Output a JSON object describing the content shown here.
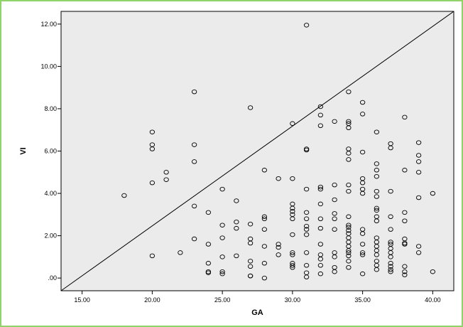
{
  "chart_data": {
    "type": "scatter",
    "xlabel": "GA",
    "ylabel": "VI",
    "xlim": [
      13.5,
      41.5
    ],
    "ylim": [
      -0.6,
      12.6
    ],
    "x_ticks": [
      {
        "value": 15,
        "label": "15.00"
      },
      {
        "value": 20,
        "label": "20.00"
      },
      {
        "value": 25,
        "label": "25.00"
      },
      {
        "value": 30,
        "label": "30.00"
      },
      {
        "value": 35,
        "label": "35.00"
      },
      {
        "value": 40,
        "label": "40.00"
      }
    ],
    "y_ticks": [
      {
        "value": 0,
        "label": ".00"
      },
      {
        "value": 2,
        "label": "2.00"
      },
      {
        "value": 4,
        "label": "4.00"
      },
      {
        "value": 6,
        "label": "6.00"
      },
      {
        "value": 8,
        "label": "8.00"
      },
      {
        "value": 10,
        "label": "10.00"
      },
      {
        "value": 12,
        "label": "12.00"
      }
    ],
    "reference_line": {
      "from": [
        13.5,
        -0.6
      ],
      "to": [
        41.5,
        12.6
      ]
    },
    "plot_background": "#ebebeb",
    "marker_color": "#000000",
    "points": [
      [
        18,
        3.9
      ],
      [
        20,
        6.9
      ],
      [
        20,
        6.3
      ],
      [
        20,
        6.1
      ],
      [
        20,
        4.5
      ],
      [
        20,
        1.05
      ],
      [
        21,
        5.0
      ],
      [
        21,
        4.65
      ],
      [
        22,
        1.2
      ],
      [
        23,
        8.8
      ],
      [
        23,
        6.3
      ],
      [
        23,
        5.5
      ],
      [
        23,
        3.4
      ],
      [
        23,
        1.85
      ],
      [
        24,
        3.1
      ],
      [
        24,
        1.6
      ],
      [
        24,
        0.7
      ],
      [
        24,
        0.3
      ],
      [
        24,
        0.25
      ],
      [
        25,
        4.2
      ],
      [
        25,
        2.5
      ],
      [
        25,
        1.9
      ],
      [
        25,
        1.0
      ],
      [
        25,
        0.3
      ],
      [
        25,
        0.2
      ],
      [
        26,
        3.65
      ],
      [
        26,
        2.65
      ],
      [
        26,
        2.35
      ],
      [
        26,
        1.05
      ],
      [
        27,
        8.05
      ],
      [
        27,
        2.55
      ],
      [
        27,
        1.85
      ],
      [
        27,
        1.65
      ],
      [
        27,
        0.8
      ],
      [
        27,
        0.55
      ],
      [
        27,
        0.1
      ],
      [
        27,
        0.1
      ],
      [
        28,
        5.1
      ],
      [
        28,
        2.9
      ],
      [
        28,
        2.8
      ],
      [
        28,
        2.3
      ],
      [
        28,
        1.5
      ],
      [
        28,
        0.7
      ],
      [
        28,
        0.0
      ],
      [
        29,
        4.7
      ],
      [
        29,
        1.6
      ],
      [
        29,
        1.45
      ],
      [
        29,
        1.1
      ],
      [
        30,
        7.3
      ],
      [
        30,
        4.7
      ],
      [
        30,
        3.5
      ],
      [
        30,
        3.3
      ],
      [
        30,
        3.15
      ],
      [
        30,
        3.0
      ],
      [
        30,
        2.8
      ],
      [
        30,
        2.05
      ],
      [
        30,
        1.2
      ],
      [
        30,
        1.1
      ],
      [
        30,
        0.7
      ],
      [
        30,
        0.6
      ],
      [
        30,
        0.5
      ],
      [
        31,
        11.95
      ],
      [
        31,
        6.1
      ],
      [
        31,
        6.05
      ],
      [
        31,
        4.2
      ],
      [
        31,
        3.1
      ],
      [
        31,
        2.8
      ],
      [
        31,
        2.45
      ],
      [
        31,
        2.3
      ],
      [
        31,
        2.05
      ],
      [
        31,
        1.2
      ],
      [
        31,
        0.6
      ],
      [
        31,
        0.25
      ],
      [
        31,
        0.05
      ],
      [
        32,
        8.1
      ],
      [
        32,
        7.7
      ],
      [
        32,
        7.2
      ],
      [
        32,
        4.3
      ],
      [
        32,
        4.2
      ],
      [
        32,
        3.5
      ],
      [
        32,
        2.8
      ],
      [
        32,
        2.35
      ],
      [
        32,
        1.6
      ],
      [
        32,
        1.1
      ],
      [
        32,
        0.9
      ],
      [
        32,
        0.6
      ],
      [
        32,
        0.2
      ],
      [
        33,
        7.4
      ],
      [
        33,
        4.4
      ],
      [
        33,
        3.7
      ],
      [
        33,
        3.05
      ],
      [
        33,
        2.8
      ],
      [
        33,
        2.3
      ],
      [
        33,
        1.2
      ],
      [
        33,
        1.0
      ],
      [
        33,
        0.5
      ],
      [
        33,
        0.3
      ],
      [
        34,
        8.8
      ],
      [
        34,
        7.4
      ],
      [
        34,
        7.3
      ],
      [
        34,
        7.1
      ],
      [
        34,
        6.1
      ],
      [
        34,
        5.9
      ],
      [
        34,
        5.6
      ],
      [
        34,
        4.4
      ],
      [
        34,
        4.1
      ],
      [
        34,
        2.9
      ],
      [
        34,
        2.5
      ],
      [
        34,
        2.4
      ],
      [
        34,
        2.25
      ],
      [
        34,
        2.1
      ],
      [
        34,
        1.9
      ],
      [
        34,
        1.7
      ],
      [
        34,
        1.5
      ],
      [
        34,
        1.3
      ],
      [
        34,
        1.2
      ],
      [
        34,
        1.05
      ],
      [
        34,
        0.8
      ],
      [
        34,
        0.5
      ],
      [
        35,
        8.3
      ],
      [
        35,
        7.75
      ],
      [
        35,
        5.95
      ],
      [
        35,
        4.7
      ],
      [
        35,
        4.5
      ],
      [
        35,
        4.2
      ],
      [
        35,
        4.0
      ],
      [
        35,
        2.3
      ],
      [
        35,
        2.1
      ],
      [
        35,
        1.6
      ],
      [
        35,
        1.2
      ],
      [
        35,
        1.1
      ],
      [
        35,
        0.2
      ],
      [
        36,
        6.9
      ],
      [
        36,
        5.4
      ],
      [
        36,
        5.1
      ],
      [
        36,
        4.8
      ],
      [
        36,
        4.1
      ],
      [
        36,
        3.85
      ],
      [
        36,
        3.3
      ],
      [
        36,
        3.2
      ],
      [
        36,
        2.9
      ],
      [
        36,
        2.7
      ],
      [
        36,
        1.9
      ],
      [
        36,
        1.7
      ],
      [
        36,
        1.5
      ],
      [
        36,
        1.3
      ],
      [
        36,
        1.1
      ],
      [
        36,
        0.8
      ],
      [
        36,
        0.6
      ],
      [
        36,
        0.4
      ],
      [
        37,
        6.35
      ],
      [
        37,
        6.15
      ],
      [
        37,
        4.1
      ],
      [
        37,
        2.9
      ],
      [
        37,
        2.3
      ],
      [
        37,
        1.7
      ],
      [
        37,
        1.6
      ],
      [
        37,
        1.4
      ],
      [
        37,
        1.2
      ],
      [
        37,
        1.0
      ],
      [
        37,
        0.7
      ],
      [
        37,
        0.55
      ],
      [
        37,
        0.4
      ],
      [
        37,
        0.3
      ],
      [
        38,
        7.6
      ],
      [
        38,
        5.1
      ],
      [
        38,
        3.1
      ],
      [
        38,
        2.7
      ],
      [
        38,
        1.85
      ],
      [
        38,
        1.65
      ],
      [
        38,
        1.6
      ],
      [
        38,
        0.55
      ],
      [
        38,
        0.3
      ],
      [
        38,
        0.15
      ],
      [
        39,
        6.4
      ],
      [
        39,
        5.8
      ],
      [
        39,
        5.5
      ],
      [
        39,
        5.0
      ],
      [
        39,
        3.8
      ],
      [
        39,
        1.5
      ],
      [
        39,
        1.2
      ],
      [
        40,
        4.0
      ],
      [
        40,
        0.3
      ]
    ]
  }
}
